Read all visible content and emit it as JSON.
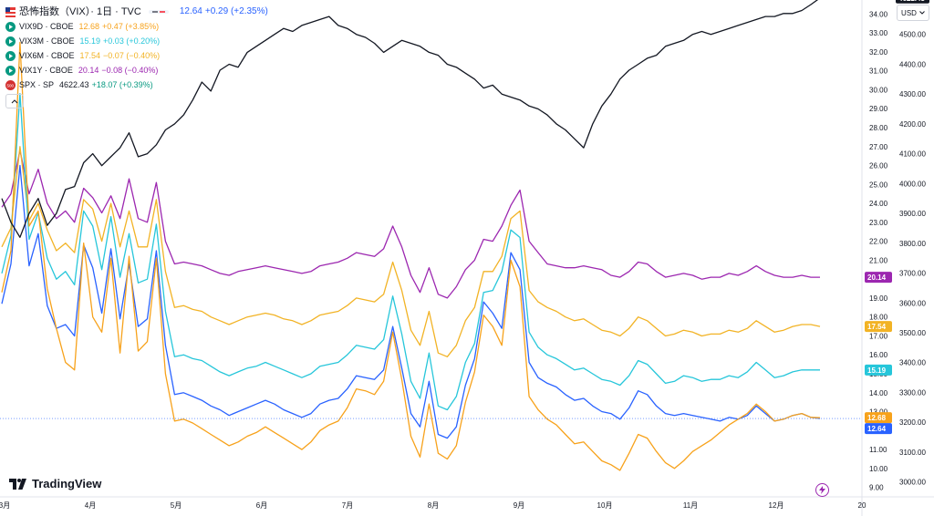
{
  "header": {
    "title": "恐怖指数（VIX）· 1日 · TVC",
    "main_value": "12.64",
    "main_change": "+0.29 (+2.35%)",
    "main_color": "#2962ff"
  },
  "legend": [
    {
      "name": "VIX9D · CBOE",
      "value": "12.68",
      "change": "+0.47 (+3.85%)",
      "color": "#f7a21b",
      "icon": "play-icon"
    },
    {
      "name": "VIX3M · CBOE",
      "value": "15.19",
      "change": "+0.03 (+0.20%)",
      "color": "#26c6da",
      "icon": "play-icon"
    },
    {
      "name": "VIX6M · CBOE",
      "value": "17.54",
      "change": "−0.07 (−0.40%)",
      "color": "#f2b325",
      "icon": "play-icon"
    },
    {
      "name": "VIX1Y · CBOE",
      "value": "20.14",
      "change": "−0.08 (−0.40%)",
      "color": "#9c27b0",
      "icon": "play-icon"
    },
    {
      "name": "SPX · SP",
      "value": "4622.43",
      "change": "+18.07 (+0.39%)",
      "color": "#131722",
      "icon": "spx-500-icon"
    }
  ],
  "currency_button": "USD",
  "logo_text": "TradingView",
  "chart_data": {
    "type": "line",
    "x_labels": [
      "3月",
      "4月",
      "5月",
      "6月",
      "7月",
      "8月",
      "9月",
      "10月",
      "11月",
      "12月",
      "20"
    ],
    "y_left_label_ticks": [
      "34.00",
      "33.00",
      "32.00",
      "31.00",
      "30.00",
      "29.00",
      "28.00",
      "27.00",
      "26.00",
      "25.00",
      "24.00",
      "23.00",
      "22.00",
      "21.00",
      "20.00",
      "19.00",
      "18.00",
      "17.00",
      "16.00",
      "15.00",
      "14.00",
      "13.00",
      "12.00",
      "11.00",
      "10.00",
      "9.00"
    ],
    "y_right_label_ticks": [
      "4500.00",
      "4400.00",
      "4300.00",
      "4200.00",
      "4100.00",
      "4000.00",
      "3900.00",
      "3800.00",
      "3700.00",
      "3600.00",
      "3500.00",
      "3400.00",
      "3300.00",
      "3200.00",
      "3100.00",
      "3000.00"
    ],
    "vix_axis": {
      "min": 8.5,
      "max": 34.5
    },
    "spx_axis": {
      "min": 2950,
      "max": 4600
    },
    "series": [
      {
        "name": "VIX1Y · CBOE",
        "color": "#9c27b0",
        "last": "20.14",
        "values": [
          23.8,
          24.5,
          26.8,
          24.5,
          25.8,
          24.0,
          23.2,
          23.6,
          23.0,
          24.8,
          24.3,
          23.5,
          24.4,
          23.2,
          25.3,
          23.2,
          23.0,
          25.1,
          22.0,
          20.8,
          20.9,
          20.8,
          20.7,
          20.5,
          20.3,
          20.2,
          20.4,
          20.5,
          20.6,
          20.7,
          20.6,
          20.5,
          20.4,
          20.3,
          20.4,
          20.7,
          20.8,
          20.9,
          21.1,
          21.4,
          21.3,
          21.2,
          21.6,
          22.8,
          21.7,
          20.2,
          19.3,
          20.6,
          19.2,
          19.0,
          19.6,
          20.5,
          21.0,
          22.1,
          22.0,
          22.8,
          23.9,
          24.7,
          22.0,
          21.4,
          20.8,
          20.7,
          20.6,
          20.6,
          20.7,
          20.6,
          20.5,
          20.2,
          20.1,
          20.4,
          20.9,
          20.8,
          20.4,
          20.1,
          20.2,
          20.3,
          20.2,
          20.0,
          20.1,
          20.1,
          20.3,
          20.2,
          20.4,
          20.7,
          20.4,
          20.2,
          20.1,
          20.1,
          20.2,
          20.1,
          20.1
        ]
      },
      {
        "name": "VIX6M · CBOE",
        "color": "#f2b325",
        "last": "17.54",
        "values": [
          21.7,
          22.7,
          27.0,
          23.1,
          24.0,
          22.6,
          21.5,
          21.9,
          21.4,
          24.2,
          23.7,
          22.0,
          24.0,
          21.7,
          23.6,
          21.7,
          21.7,
          24.2,
          20.4,
          18.5,
          18.6,
          18.4,
          18.3,
          18.0,
          17.8,
          17.6,
          17.8,
          18.0,
          18.1,
          18.2,
          18.1,
          17.9,
          17.8,
          17.6,
          17.8,
          18.1,
          18.2,
          18.3,
          18.6,
          19.0,
          18.9,
          18.8,
          19.2,
          20.9,
          19.4,
          17.3,
          16.5,
          18.3,
          16.1,
          15.9,
          16.5,
          17.8,
          18.5,
          20.4,
          20.4,
          21.2,
          23.2,
          23.6,
          19.4,
          18.8,
          18.5,
          18.3,
          18.0,
          17.8,
          17.9,
          17.6,
          17.3,
          17.2,
          17.0,
          17.4,
          18.0,
          17.8,
          17.4,
          17.0,
          17.1,
          17.3,
          17.2,
          17.0,
          17.1,
          17.1,
          17.3,
          17.2,
          17.4,
          17.8,
          17.5,
          17.2,
          17.3,
          17.5,
          17.6,
          17.6,
          17.5
        ]
      },
      {
        "name": "VIX3M · CBOE",
        "color": "#26c6da",
        "last": "15.19",
        "values": [
          20.3,
          22.3,
          29.8,
          22.1,
          23.5,
          21.1,
          20.0,
          20.4,
          19.7,
          23.6,
          22.8,
          20.5,
          23.3,
          20.1,
          22.4,
          19.8,
          20.0,
          22.9,
          18.3,
          15.9,
          16.0,
          15.8,
          15.7,
          15.4,
          15.1,
          14.9,
          15.1,
          15.3,
          15.4,
          15.6,
          15.4,
          15.2,
          15.0,
          14.8,
          15.0,
          15.4,
          15.5,
          15.6,
          16.0,
          16.5,
          16.4,
          16.3,
          16.8,
          19.1,
          17.1,
          14.6,
          13.7,
          16.1,
          13.3,
          13.1,
          13.8,
          15.6,
          16.6,
          19.3,
          19.4,
          20.4,
          22.6,
          22.2,
          17.2,
          16.4,
          16.0,
          15.8,
          15.5,
          15.2,
          15.3,
          15.0,
          14.7,
          14.6,
          14.4,
          14.9,
          15.7,
          15.5,
          15.0,
          14.5,
          14.6,
          14.9,
          14.8,
          14.6,
          14.7,
          14.7,
          14.9,
          14.8,
          15.1,
          15.6,
          15.2,
          14.8,
          14.9,
          15.1,
          15.2,
          15.2,
          15.2
        ]
      },
      {
        "name": "恐怖指数（VIX）",
        "color": "#2962ff",
        "last": "12.64",
        "values": [
          18.7,
          20.8,
          26.0,
          20.7,
          22.4,
          18.6,
          17.4,
          17.6,
          17.0,
          21.8,
          20.6,
          18.2,
          21.6,
          17.9,
          20.8,
          17.5,
          17.9,
          21.5,
          16.5,
          13.9,
          14.0,
          13.8,
          13.6,
          13.3,
          13.1,
          12.8,
          13.0,
          13.2,
          13.4,
          13.6,
          13.4,
          13.1,
          12.9,
          12.7,
          12.9,
          13.4,
          13.6,
          13.7,
          14.2,
          14.9,
          14.8,
          14.7,
          15.2,
          17.5,
          15.3,
          12.9,
          12.2,
          14.6,
          11.8,
          11.6,
          12.2,
          14.4,
          15.8,
          18.8,
          18.2,
          17.4,
          21.4,
          20.5,
          15.6,
          14.8,
          14.5,
          14.3,
          13.9,
          13.6,
          13.7,
          13.3,
          13.0,
          12.9,
          12.6,
          13.2,
          14.1,
          13.9,
          13.3,
          12.9,
          12.8,
          12.9,
          12.8,
          12.7,
          12.6,
          12.5,
          12.7,
          12.6,
          12.8,
          13.3,
          12.9,
          12.5,
          12.6,
          12.8,
          12.9,
          12.7,
          12.64
        ]
      },
      {
        "name": "VIX9D · CBOE",
        "color": "#f7a21b",
        "last": "12.68",
        "values": [
          19.3,
          21.5,
          32.5,
          22.8,
          23.6,
          19.5,
          17.4,
          15.6,
          15.2,
          21.9,
          18.0,
          17.2,
          21.1,
          16.1,
          21.2,
          16.2,
          16.7,
          21.1,
          15.0,
          12.5,
          12.6,
          12.4,
          12.1,
          11.8,
          11.5,
          11.2,
          11.4,
          11.7,
          11.9,
          12.2,
          11.9,
          11.6,
          11.3,
          11.0,
          11.4,
          12.0,
          12.3,
          12.5,
          13.2,
          14.2,
          14.1,
          13.9,
          14.6,
          17.2,
          14.7,
          11.7,
          10.6,
          13.4,
          10.8,
          10.5,
          11.2,
          13.5,
          15.1,
          18.1,
          17.5,
          16.5,
          21.0,
          19.6,
          13.8,
          13.1,
          12.6,
          12.3,
          11.8,
          11.3,
          11.4,
          10.9,
          10.4,
          10.2,
          9.9,
          10.8,
          11.8,
          11.6,
          10.9,
          10.3,
          10.0,
          10.4,
          10.9,
          11.2,
          11.5,
          11.9,
          12.3,
          12.6,
          12.9,
          13.4,
          13.0,
          12.5,
          12.6,
          12.8,
          12.9,
          12.7,
          12.68
        ]
      },
      {
        "name": "SPX · SP",
        "color": "#131722",
        "axis": "right",
        "last": "4622.43",
        "values": [
          3950,
          3870,
          3820,
          3900,
          3950,
          3860,
          3900,
          3980,
          3990,
          4070,
          4100,
          4060,
          4090,
          4120,
          4170,
          4090,
          4100,
          4130,
          4180,
          4200,
          4230,
          4280,
          4340,
          4310,
          4380,
          4400,
          4390,
          4440,
          4460,
          4480,
          4500,
          4520,
          4510,
          4530,
          4540,
          4550,
          4560,
          4530,
          4520,
          4500,
          4490,
          4470,
          4440,
          4460,
          4480,
          4470,
          4460,
          4440,
          4430,
          4400,
          4390,
          4370,
          4350,
          4320,
          4330,
          4300,
          4290,
          4280,
          4260,
          4250,
          4230,
          4200,
          4180,
          4150,
          4120,
          4200,
          4260,
          4300,
          4350,
          4380,
          4400,
          4420,
          4430,
          4460,
          4470,
          4480,
          4500,
          4510,
          4500,
          4510,
          4520,
          4530,
          4540,
          4550,
          4560,
          4560,
          4570,
          4570,
          4580,
          4600,
          4622
        ]
      }
    ]
  }
}
